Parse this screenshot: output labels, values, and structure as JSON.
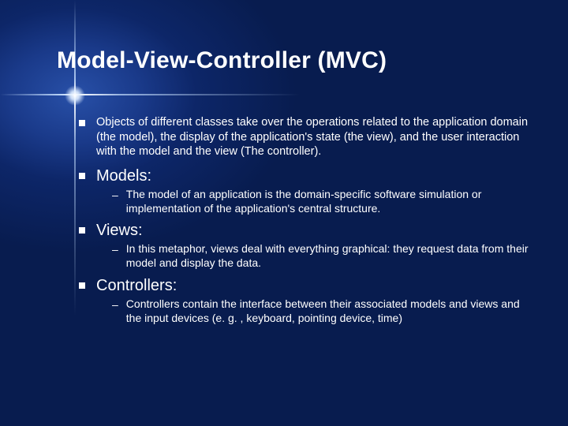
{
  "slide": {
    "title": "Model-View-Controller (MVC)",
    "background_outer": "#081c4f",
    "background_inner": "#2850a8",
    "text_color": "#ffffff",
    "bullet_color": "#ffffff",
    "title_fontsize_pt": 30,
    "body_fontsize_pt": 14.5,
    "heading_fontsize_pt": 20,
    "sub_fontsize_pt": 14,
    "items": [
      {
        "text": "Objects of different classes take over the operations related to the application domain (the model), the display of the application's state (the view), and the user interaction with the model and the view (The controller).",
        "heading": false
      },
      {
        "text": "Models:",
        "heading": true,
        "sub": "The model of an application is the domain-specific software simulation or implementation of the application's central structure."
      },
      {
        "text": "Views:",
        "heading": true,
        "sub": "In this metaphor, views deal with everything graphical: they request data from their model and display the data."
      },
      {
        "text": "Controllers:",
        "heading": true,
        "sub": "Controllers contain the interface between their associated models and views and the input devices (e. g. , keyboard, pointing device, time)"
      }
    ]
  }
}
